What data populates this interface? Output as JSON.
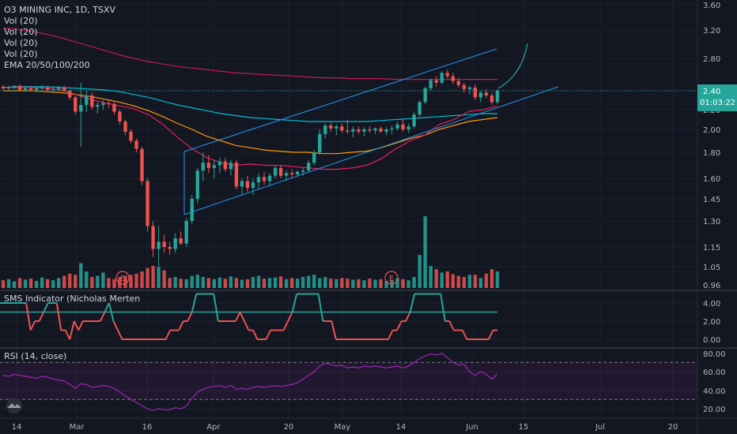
{
  "legend": {
    "title": "O3 MINING INC, 1D, TSXV",
    "vol": [
      "Vol (20)",
      "Vol (20)",
      "Vol (20)",
      "Vol (20)"
    ],
    "ema": "EMA 20/50/100/200"
  },
  "sms_title": "SMS Indicator (Nicholas Merten",
  "rsi_title": "RSI (14, close)",
  "price_box": {
    "price": "2.40",
    "timer": "01:03:22"
  },
  "colors": {
    "bg": "#131722",
    "up": "#26a69a",
    "down": "#ef5350",
    "grid": "#1e2230",
    "channel": "#2196f3",
    "ema20": "#e91e63",
    "ema50": "#ff9800",
    "ema100": "#00bcd4",
    "ema200": "#c2185b",
    "sms_up": "#26a69a",
    "sms_down": "#ef5350",
    "rsi": "#9c27b0"
  },
  "chart_data": {
    "type": "candlestick",
    "x_tick_labels": [
      "14",
      "Mar",
      "16",
      "Apr",
      "20",
      "May",
      "14",
      "Jun",
      "15",
      "Jul",
      "20"
    ],
    "price_axis_labels": [
      "3.60",
      "3.20",
      "2.80",
      "2.40",
      "2.20",
      "2.00",
      "1.80",
      "1.60",
      "1.45",
      "1.30",
      "1.15",
      "1.05",
      "0.96"
    ],
    "sms_axis_labels": [
      "4.00",
      "2.00",
      "0.00"
    ],
    "rsi_axis_labels": [
      "80.00",
      "60.00",
      "40.00",
      "20.00"
    ],
    "earnings_markers": [
      "E",
      "E"
    ],
    "candles": [
      [
        2.45,
        2.47,
        2.41,
        2.43
      ],
      [
        2.43,
        2.46,
        2.4,
        2.44
      ],
      [
        2.44,
        2.47,
        2.42,
        2.46
      ],
      [
        2.46,
        2.48,
        2.4,
        2.41
      ],
      [
        2.41,
        2.45,
        2.39,
        2.43
      ],
      [
        2.43,
        2.46,
        2.4,
        2.41
      ],
      [
        2.41,
        2.44,
        2.38,
        2.43
      ],
      [
        2.43,
        2.47,
        2.41,
        2.44
      ],
      [
        2.44,
        2.46,
        2.4,
        2.41
      ],
      [
        2.41,
        2.44,
        2.38,
        2.42
      ],
      [
        2.42,
        2.46,
        2.4,
        2.44
      ],
      [
        2.44,
        2.46,
        2.39,
        2.4
      ],
      [
        2.4,
        2.42,
        2.3,
        2.33
      ],
      [
        2.33,
        2.35,
        2.15,
        2.18
      ],
      [
        2.18,
        2.5,
        1.85,
        2.25
      ],
      [
        2.25,
        2.4,
        2.18,
        2.35
      ],
      [
        2.35,
        2.38,
        2.2,
        2.23
      ],
      [
        2.23,
        2.28,
        2.16,
        2.25
      ],
      [
        2.25,
        2.3,
        2.2,
        2.27
      ],
      [
        2.27,
        2.3,
        2.22,
        2.26
      ],
      [
        2.26,
        2.28,
        2.15,
        2.18
      ],
      [
        2.18,
        2.2,
        2.05,
        2.08
      ],
      [
        2.08,
        2.1,
        1.95,
        1.98
      ],
      [
        1.98,
        2.0,
        1.88,
        1.9
      ],
      [
        1.9,
        1.92,
        1.8,
        1.83
      ],
      [
        1.83,
        1.85,
        1.55,
        1.58
      ],
      [
        1.58,
        1.6,
        1.24,
        1.27
      ],
      [
        1.27,
        1.3,
        1.1,
        1.14
      ],
      [
        1.14,
        1.27,
        1.05,
        1.18
      ],
      [
        1.18,
        1.22,
        1.12,
        1.15
      ],
      [
        1.15,
        1.18,
        1.11,
        1.14
      ],
      [
        1.14,
        1.23,
        1.12,
        1.2
      ],
      [
        1.2,
        1.24,
        1.16,
        1.17
      ],
      [
        1.17,
        1.32,
        1.15,
        1.3
      ],
      [
        1.3,
        1.48,
        1.28,
        1.45
      ],
      [
        1.45,
        1.68,
        1.42,
        1.66
      ],
      [
        1.66,
        1.8,
        1.58,
        1.72
      ],
      [
        1.72,
        1.78,
        1.64,
        1.68
      ],
      [
        1.68,
        1.74,
        1.6,
        1.7
      ],
      [
        1.7,
        1.76,
        1.64,
        1.73
      ],
      [
        1.73,
        1.76,
        1.65,
        1.67
      ],
      [
        1.67,
        1.74,
        1.62,
        1.72
      ],
      [
        1.72,
        1.74,
        1.52,
        1.54
      ],
      [
        1.54,
        1.6,
        1.48,
        1.58
      ],
      [
        1.58,
        1.62,
        1.5,
        1.53
      ],
      [
        1.53,
        1.6,
        1.48,
        1.57
      ],
      [
        1.57,
        1.64,
        1.52,
        1.61
      ],
      [
        1.61,
        1.65,
        1.55,
        1.58
      ],
      [
        1.58,
        1.64,
        1.54,
        1.62
      ],
      [
        1.62,
        1.7,
        1.6,
        1.68
      ],
      [
        1.68,
        1.7,
        1.6,
        1.62
      ],
      [
        1.62,
        1.66,
        1.58,
        1.64
      ],
      [
        1.64,
        1.67,
        1.6,
        1.63
      ],
      [
        1.63,
        1.66,
        1.61,
        1.65
      ],
      [
        1.65,
        1.68,
        1.62,
        1.66
      ],
      [
        1.66,
        1.74,
        1.65,
        1.72
      ],
      [
        1.72,
        1.82,
        1.7,
        1.8
      ],
      [
        1.8,
        2.0,
        1.78,
        1.96
      ],
      [
        1.96,
        2.06,
        1.92,
        2.04
      ],
      [
        2.04,
        2.07,
        1.98,
        2.01
      ],
      [
        2.01,
        2.05,
        1.95,
        2.03
      ],
      [
        2.03,
        2.06,
        1.97,
        1.99
      ],
      [
        1.99,
        2.1,
        1.96,
        1.98
      ],
      [
        1.98,
        2.03,
        1.93,
        2.0
      ],
      [
        2.0,
        2.03,
        1.96,
        1.98
      ],
      [
        1.98,
        2.02,
        1.94,
        2.0
      ],
      [
        2.0,
        2.03,
        1.97,
        1.99
      ],
      [
        1.99,
        2.02,
        1.96,
        2.01
      ],
      [
        2.01,
        2.03,
        1.97,
        1.98
      ],
      [
        1.98,
        2.02,
        1.95,
        2.0
      ],
      [
        2.0,
        2.04,
        1.96,
        2.01
      ],
      [
        2.01,
        2.08,
        1.99,
        2.05
      ],
      [
        2.05,
        2.1,
        1.98,
        2.0
      ],
      [
        2.0,
        2.06,
        1.97,
        2.03
      ],
      [
        2.03,
        2.18,
        2.01,
        2.15
      ],
      [
        2.15,
        2.3,
        2.13,
        2.28
      ],
      [
        2.28,
        2.45,
        2.26,
        2.43
      ],
      [
        2.43,
        2.55,
        2.4,
        2.53
      ],
      [
        2.53,
        2.58,
        2.45,
        2.5
      ],
      [
        2.5,
        2.64,
        2.48,
        2.62
      ],
      [
        2.62,
        2.66,
        2.55,
        2.58
      ],
      [
        2.58,
        2.62,
        2.48,
        2.52
      ],
      [
        2.52,
        2.56,
        2.44,
        2.47
      ],
      [
        2.47,
        2.5,
        2.38,
        2.42
      ],
      [
        2.42,
        2.46,
        2.36,
        2.44
      ],
      [
        2.44,
        2.48,
        2.3,
        2.33
      ],
      [
        2.33,
        2.4,
        2.28,
        2.38
      ],
      [
        2.38,
        2.42,
        2.32,
        2.35
      ],
      [
        2.35,
        2.38,
        2.25,
        2.28
      ],
      [
        2.28,
        2.42,
        2.26,
        2.4
      ]
    ],
    "volumes": [
      14,
      16,
      12,
      18,
      15,
      17,
      13,
      19,
      16,
      14,
      18,
      22,
      26,
      24,
      45,
      30,
      20,
      22,
      28,
      18,
      16,
      20,
      22,
      24,
      26,
      30,
      36,
      40,
      38,
      32,
      18,
      20,
      17,
      16,
      22,
      24,
      20,
      18,
      16,
      19,
      17,
      21,
      18,
      15,
      16,
      20,
      22,
      17,
      18,
      19,
      21,
      16,
      18,
      17,
      20,
      22,
      24,
      18,
      20,
      17,
      16,
      18,
      17,
      15,
      16,
      14,
      17,
      15,
      16,
      13,
      15,
      18,
      16,
      14,
      20,
      60,
      130,
      40,
      34,
      28,
      30,
      25,
      22,
      20,
      24,
      24,
      18,
      26,
      34,
      30
    ],
    "ema20": [
      2.44,
      2.44,
      2.44,
      2.43,
      2.41,
      2.36,
      2.31,
      2.27,
      2.24,
      2.21,
      2.15,
      2.05,
      1.93,
      1.83,
      1.76,
      1.72,
      1.7,
      1.71,
      1.7,
      1.7,
      1.69,
      1.68,
      1.67,
      1.67,
      1.68,
      1.7,
      1.75,
      1.83,
      1.9,
      1.95,
      2.05,
      2.1,
      2.18,
      2.2,
      2.24
    ],
    "ema50": [
      2.4,
      2.4,
      2.4,
      2.39,
      2.38,
      2.36,
      2.34,
      2.31,
      2.28,
      2.24,
      2.19,
      2.13,
      2.06,
      2.0,
      1.94,
      1.9,
      1.86,
      1.84,
      1.82,
      1.81,
      1.8,
      1.8,
      1.79,
      1.79,
      1.8,
      1.81,
      1.84,
      1.88,
      1.92,
      1.95,
      2.0,
      2.04,
      2.08,
      2.1,
      2.12
    ],
    "ema100": [
      2.44,
      2.45,
      2.45,
      2.45,
      2.44,
      2.43,
      2.42,
      2.41,
      2.39,
      2.36,
      2.33,
      2.29,
      2.25,
      2.22,
      2.19,
      2.16,
      2.14,
      2.12,
      2.11,
      2.1,
      2.09,
      2.08,
      2.08,
      2.08,
      2.08,
      2.08,
      2.09,
      2.1,
      2.11,
      2.12,
      2.13,
      2.14,
      2.15,
      2.16,
      2.16
    ],
    "ema200": [
      3.23,
      3.21,
      3.18,
      3.14,
      3.09,
      3.03,
      2.97,
      2.91,
      2.85,
      2.8,
      2.76,
      2.73,
      2.7,
      2.68,
      2.66,
      2.64,
      2.62,
      2.61,
      2.6,
      2.59,
      2.58,
      2.57,
      2.56,
      2.56,
      2.55,
      2.55,
      2.55,
      2.54,
      2.54,
      2.54,
      2.54,
      2.54,
      2.54,
      2.54,
      2.54
    ],
    "sms": [
      4,
      4,
      4,
      4,
      4,
      4,
      4,
      1,
      2,
      2,
      3,
      4,
      4,
      4,
      1,
      1,
      0,
      2,
      1,
      2,
      2,
      2,
      2,
      2,
      3,
      4,
      2,
      1,
      0,
      0,
      0,
      0,
      0,
      0,
      0,
      0,
      0,
      0,
      0,
      1,
      1,
      1,
      2,
      2,
      3,
      5,
      5,
      5,
      5,
      5,
      2,
      2,
      2,
      2,
      2,
      3,
      2,
      1,
      1,
      0,
      0,
      0,
      1,
      1,
      1,
      1,
      2,
      3,
      5,
      5,
      5,
      5,
      5,
      5,
      2,
      2,
      2,
      0,
      0,
      0,
      0,
      0,
      0,
      0,
      0,
      0,
      0,
      0,
      0,
      0,
      1,
      1,
      2,
      2,
      3,
      5,
      5,
      5,
      5,
      5,
      5,
      5,
      2,
      2,
      1,
      1,
      1,
      0,
      0,
      0,
      0,
      0,
      0,
      1,
      1
    ],
    "sms_baseline": 3,
    "rsi": [
      56,
      55,
      57,
      56,
      55,
      54,
      53,
      55,
      54,
      52,
      51,
      50,
      46,
      42,
      47,
      46,
      43,
      44,
      45,
      44,
      42,
      38,
      34,
      30,
      27,
      23,
      20,
      18,
      20,
      19,
      19,
      21,
      20,
      23,
      31,
      38,
      41,
      43,
      44,
      45,
      43,
      45,
      41,
      42,
      41,
      43,
      44,
      43,
      44,
      45,
      44,
      45,
      46,
      48,
      52,
      56,
      60,
      66,
      69,
      68,
      66,
      67,
      64,
      65,
      64,
      66,
      65,
      66,
      65,
      64,
      65,
      66,
      64,
      66,
      70,
      74,
      77,
      79,
      78,
      80,
      75,
      70,
      67,
      68,
      60,
      56,
      60,
      57,
      52,
      58
    ],
    "rsi_bands": [
      70,
      30
    ]
  }
}
